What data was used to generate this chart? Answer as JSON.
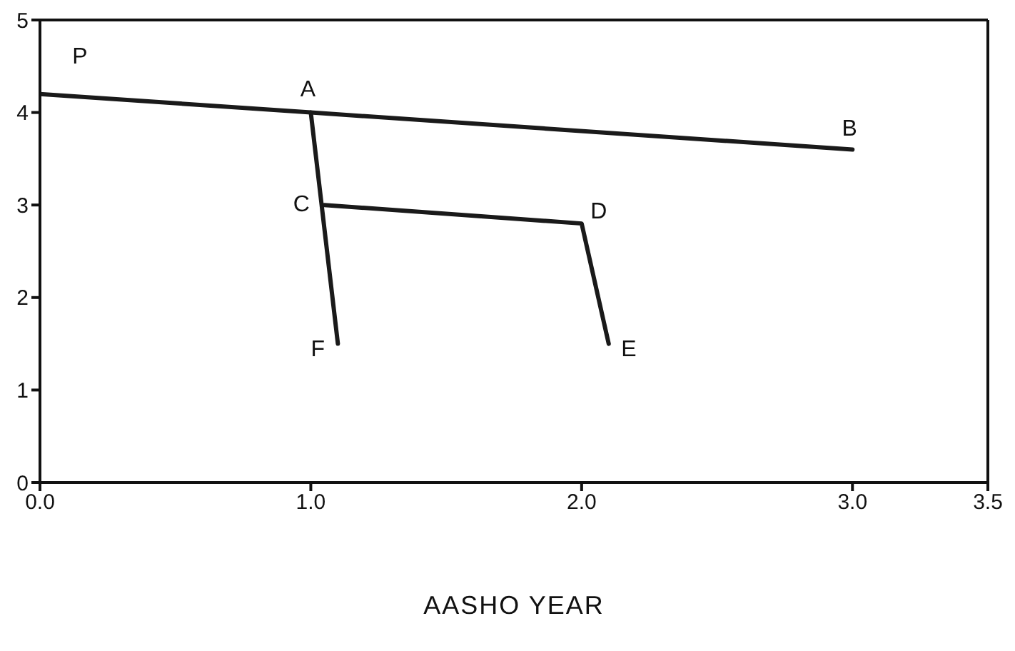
{
  "chart_data": {
    "type": "line",
    "xlabel": "AASHO YEAR",
    "xlim": [
      0,
      3.5
    ],
    "xticks": [
      {
        "value": 0,
        "label": "0.0"
      },
      {
        "value": 1,
        "label": "1.0"
      },
      {
        "value": 2,
        "label": "2.0"
      },
      {
        "value": 3,
        "label": "3.0"
      },
      {
        "value": 3.5,
        "label": "3.5"
      }
    ],
    "ylim": [
      0,
      5
    ],
    "yticks": [
      0,
      1,
      2,
      3,
      4,
      5
    ],
    "marker": "none",
    "line_style": "solid",
    "series": [
      {
        "color": "#1a1a1a",
        "x": [
          0,
          1.0,
          3.0
        ],
        "values": [
          4.2,
          4.0,
          3.6
        ]
      },
      {
        "color": "#1a1a1a",
        "x": [
          1.0,
          1.1
        ],
        "values": [
          4.0,
          1.5
        ]
      },
      {
        "color": "#1a1a1a",
        "x": [
          1.05,
          2.0,
          2.1
        ],
        "values": [
          3.0,
          2.8,
          1.5
        ]
      }
    ],
    "annotations": [
      {
        "text": "P",
        "x": 0,
        "y": 4.2
      },
      {
        "text": "A",
        "x": 1.0,
        "y": 4.0
      },
      {
        "text": "B",
        "x": 3.0,
        "y": 3.6
      },
      {
        "text": "C",
        "x": 1.05,
        "y": 3.0
      },
      {
        "text": "D",
        "x": 2.0,
        "y": 2.8
      },
      {
        "text": "E",
        "x": 2.1,
        "y": 1.5
      },
      {
        "text": "F",
        "x": 1.1,
        "y": 1.5
      }
    ]
  }
}
